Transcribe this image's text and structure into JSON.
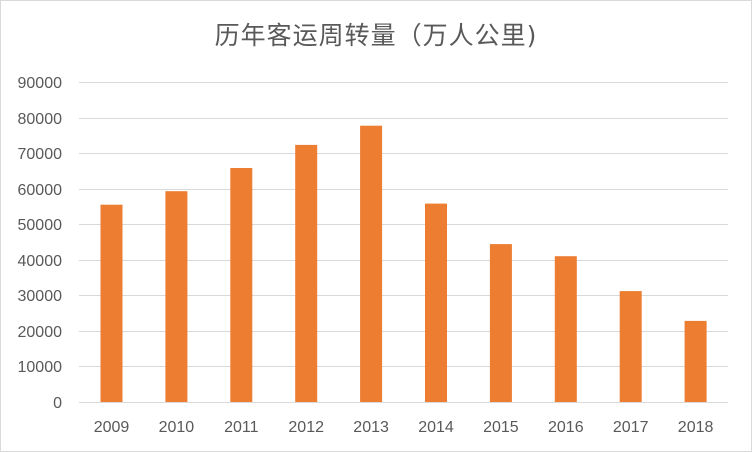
{
  "chart_data": {
    "type": "bar",
    "title": "历年客运周转量（万人公里)",
    "xlabel": "",
    "ylabel": "",
    "categories": [
      "2009",
      "2010",
      "2011",
      "2012",
      "2013",
      "2014",
      "2015",
      "2016",
      "2017",
      "2018"
    ],
    "values": [
      55500,
      59300,
      65800,
      72300,
      77700,
      55800,
      44400,
      41000,
      31200,
      22800
    ],
    "ylim": [
      0,
      90000
    ],
    "yticks": [
      0,
      10000,
      20000,
      30000,
      40000,
      50000,
      60000,
      70000,
      80000,
      90000
    ],
    "yticklabels": [
      "0",
      "10000",
      "20000",
      "30000",
      "40000",
      "50000",
      "60000",
      "70000",
      "80000",
      "90000"
    ],
    "grid": true,
    "legend": "none",
    "bar_color": "#ED7D31",
    "grid_color": "#D9D9D9",
    "text_color": "#595959"
  }
}
